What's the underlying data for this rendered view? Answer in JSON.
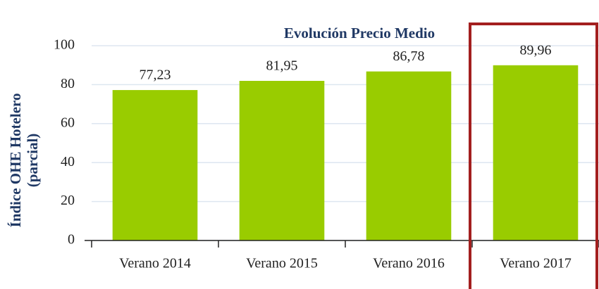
{
  "chart_data": {
    "type": "bar",
    "title": "Evolución Precio Medio",
    "y_label": [
      "Índice OHE Hotelero",
      "(parcial)"
    ],
    "categories": [
      "Verano 2014",
      "Verano 2015",
      "Verano 2016",
      "Verano 2017"
    ],
    "values": [
      77.23,
      81.95,
      86.78,
      89.96
    ],
    "value_labels": [
      "77,23",
      "81,95",
      "86,78",
      "89,96"
    ],
    "color": "#99cc00",
    "ylim": [
      0,
      100
    ],
    "yticks": [
      0,
      20,
      40,
      60,
      80,
      100
    ],
    "grid": true
  }
}
